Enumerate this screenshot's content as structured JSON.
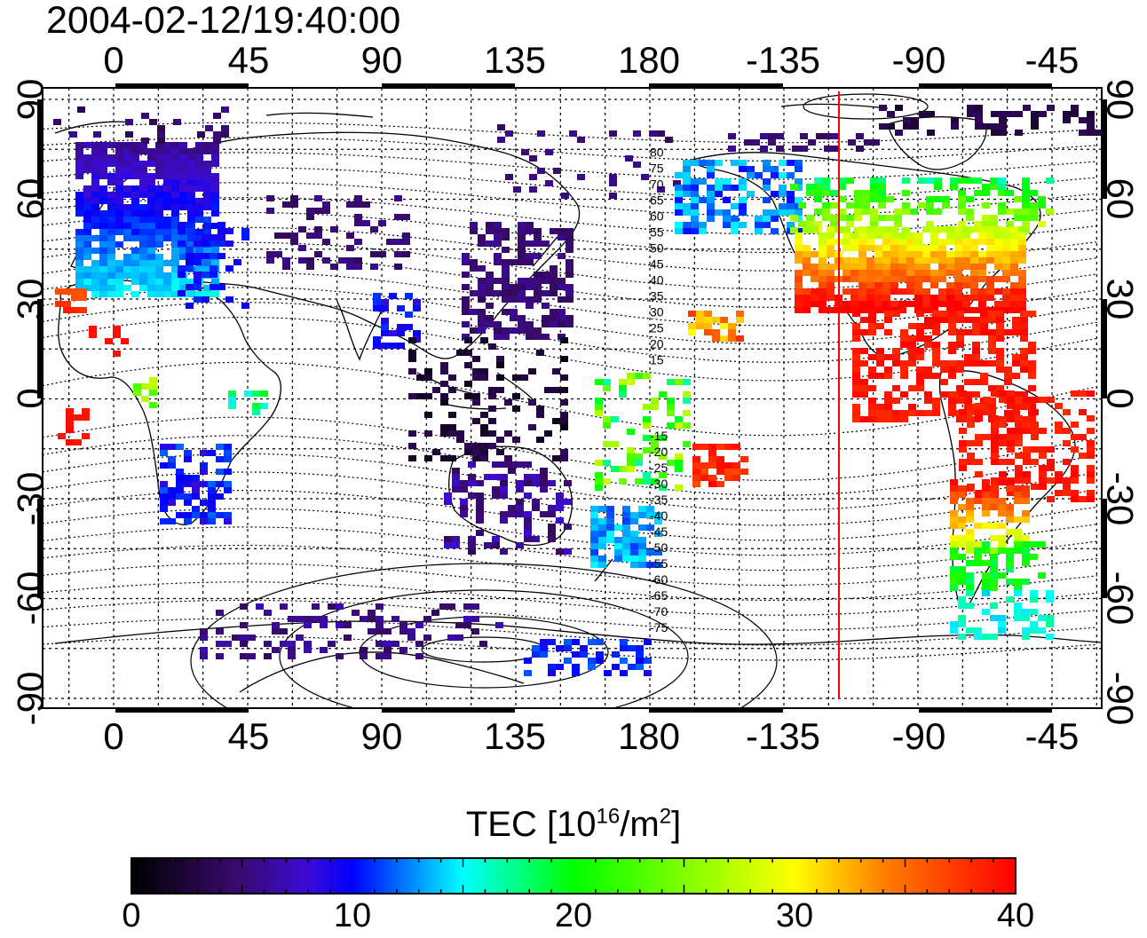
{
  "title": "2004-02-12/19:40:00",
  "map": {
    "lon_tick_labels": [
      "0",
      "45",
      "90",
      "135",
      "180",
      "-135",
      "-90",
      "-45"
    ],
    "lat_tick_labels_left": [
      "90",
      "60",
      "30",
      "0",
      "-30",
      "-60",
      "-90"
    ],
    "lat_tick_labels_right": [
      "90",
      "60",
      "30",
      "0",
      "-30",
      "-60",
      "-90"
    ],
    "magnetic_lat_labels": [
      "80",
      "75",
      "70",
      "65",
      "60",
      "55",
      "50",
      "45",
      "40",
      "35",
      "30",
      "25",
      "20",
      "15",
      "-15",
      "-20",
      "-25",
      "-30",
      "-35",
      "-40",
      "-45",
      "-50",
      "-55",
      "-60",
      "-65",
      "-70",
      "-75"
    ],
    "marker_line_color": "#ff0000"
  },
  "colorbar": {
    "title_prefix": "TEC  [10",
    "title_sup1": "16",
    "title_mid": "/m",
    "title_sup2": "2",
    "title_suffix": "]",
    "tick_labels": [
      "0",
      "10",
      "20",
      "30",
      "40"
    ],
    "colors": [
      "#000000",
      "#3a0a6e",
      "#3b0bd6",
      "#0000ff",
      "#00ffff",
      "#00ff00",
      "#ffff00",
      "#ff8000",
      "#ff0000"
    ]
  }
}
